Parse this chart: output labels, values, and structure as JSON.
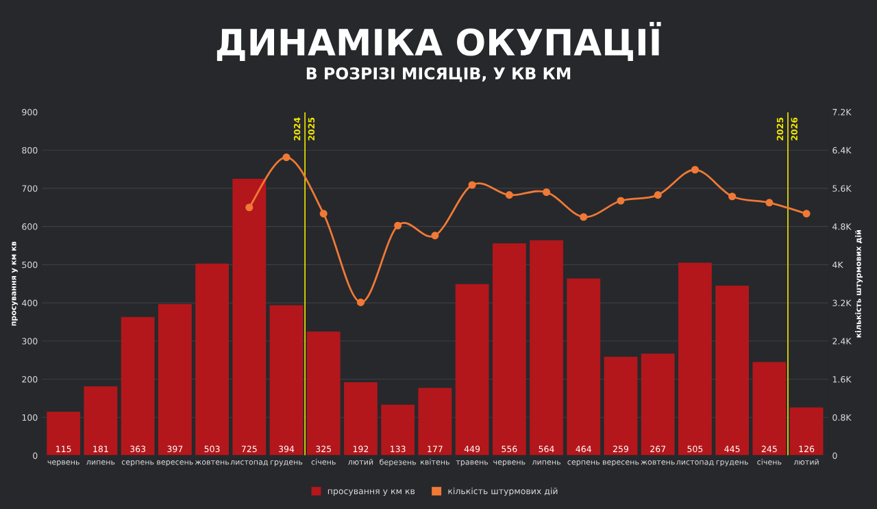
{
  "chart_data": {
    "type": "bar",
    "title": "ДИНАМІКА ОКУПАЦІЇ",
    "subtitle": "В РОЗРІЗІ МІСЯЦІВ, У КВ КМ",
    "ylabel": "просування у км кв",
    "y2label": "кількість штурмових дій",
    "categories": [
      "червень",
      "липень",
      "серпень",
      "вересень",
      "жовтень",
      "листопад",
      "грудень",
      "січень",
      "лютий",
      "березень",
      "квітень",
      "травень",
      "червень",
      "липень",
      "серпень",
      "вересень",
      "жовтень",
      "листопад",
      "грудень",
      "січень",
      "лютий"
    ],
    "series": [
      {
        "name": "просування у км кв",
        "color": "#b3171b",
        "values": [
          115,
          181,
          363,
          397,
          503,
          725,
          394,
          325,
          192,
          133,
          177,
          449,
          556,
          564,
          464,
          259,
          267,
          505,
          445,
          245,
          126
        ],
        "value_labels": [
          "115",
          "181",
          "363",
          "397",
          "503",
          "725",
          "394",
          "325",
          "192",
          "133",
          "177",
          "449",
          "556",
          "564",
          "464",
          "259",
          "267",
          "505",
          "445",
          "245",
          "126"
        ]
      },
      {
        "name": "кількість штурмових дій",
        "type": "line",
        "axis": "y2",
        "color": "#f07a35",
        "marker": "circle",
        "values": [
          null,
          null,
          null,
          null,
          null,
          5200,
          6250,
          5070,
          3210,
          4820,
          4610,
          5670,
          5460,
          5520,
          5000,
          5340,
          5460,
          5990,
          5430,
          5300,
          5070
        ]
      }
    ],
    "ylim": [
      0,
      900
    ],
    "yticks": [
      0,
      100,
      200,
      300,
      400,
      500,
      600,
      700,
      800,
      900
    ],
    "y2lim": [
      0,
      7200
    ],
    "y2ticks": [
      0,
      {
        "value": 800,
        "label": "0.8K"
      },
      {
        "value": 1600,
        "label": "1.6K"
      },
      {
        "value": 2400,
        "label": "2.4K"
      },
      {
        "value": 3200,
        "label": "3.2K"
      },
      {
        "value": 4000,
        "label": "4K"
      },
      {
        "value": 4800,
        "label": "4.8K"
      },
      {
        "value": 5600,
        "label": "5.6K"
      },
      {
        "value": 6400,
        "label": "6.4K"
      },
      {
        "value": 7200,
        "label": "7.2K"
      }
    ],
    "grid": "y",
    "legend": "bottom",
    "annotations": [
      "2024",
      "2025",
      "2025",
      "2026"
    ]
  }
}
